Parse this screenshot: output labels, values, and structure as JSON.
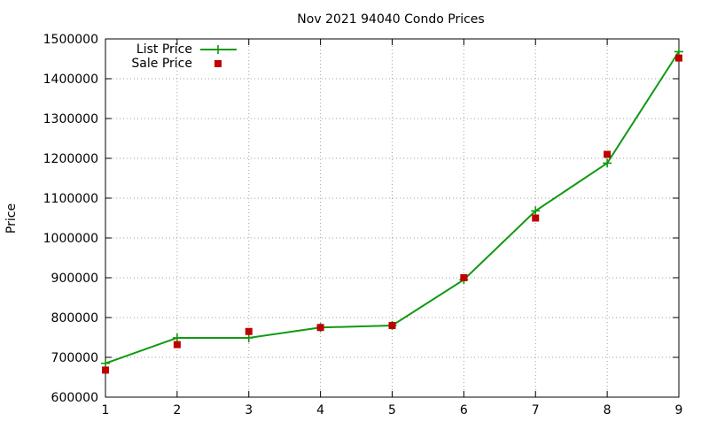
{
  "chart_data": {
    "type": "line",
    "title": "Nov 2021 94040 Condo Prices",
    "xlabel": "",
    "ylabel": "Price",
    "x": [
      1,
      2,
      3,
      4,
      5,
      6,
      7,
      8,
      9
    ],
    "xlim": [
      1,
      9
    ],
    "ylim": [
      600000,
      1500000
    ],
    "xticks": [
      "1",
      "2",
      "3",
      "4",
      "5",
      "6",
      "7",
      "8",
      "9"
    ],
    "yticks": [
      "600000",
      "700000",
      "800000",
      "900000",
      "1000000",
      "1100000",
      "1200000",
      "1300000",
      "1400000",
      "1500000"
    ],
    "grid": true,
    "legend_position": "top-left",
    "series": [
      {
        "name": "List Price",
        "style": "line with plus markers",
        "color": "#109910",
        "values": [
          685000,
          749000,
          749000,
          775000,
          780000,
          895000,
          1068000,
          1188000,
          1468000
        ]
      },
      {
        "name": "Sale Price",
        "style": "square markers",
        "color": "#c00000",
        "values": [
          668000,
          732000,
          765000,
          775000,
          780000,
          900000,
          1050000,
          1210000,
          1452000
        ]
      }
    ]
  }
}
